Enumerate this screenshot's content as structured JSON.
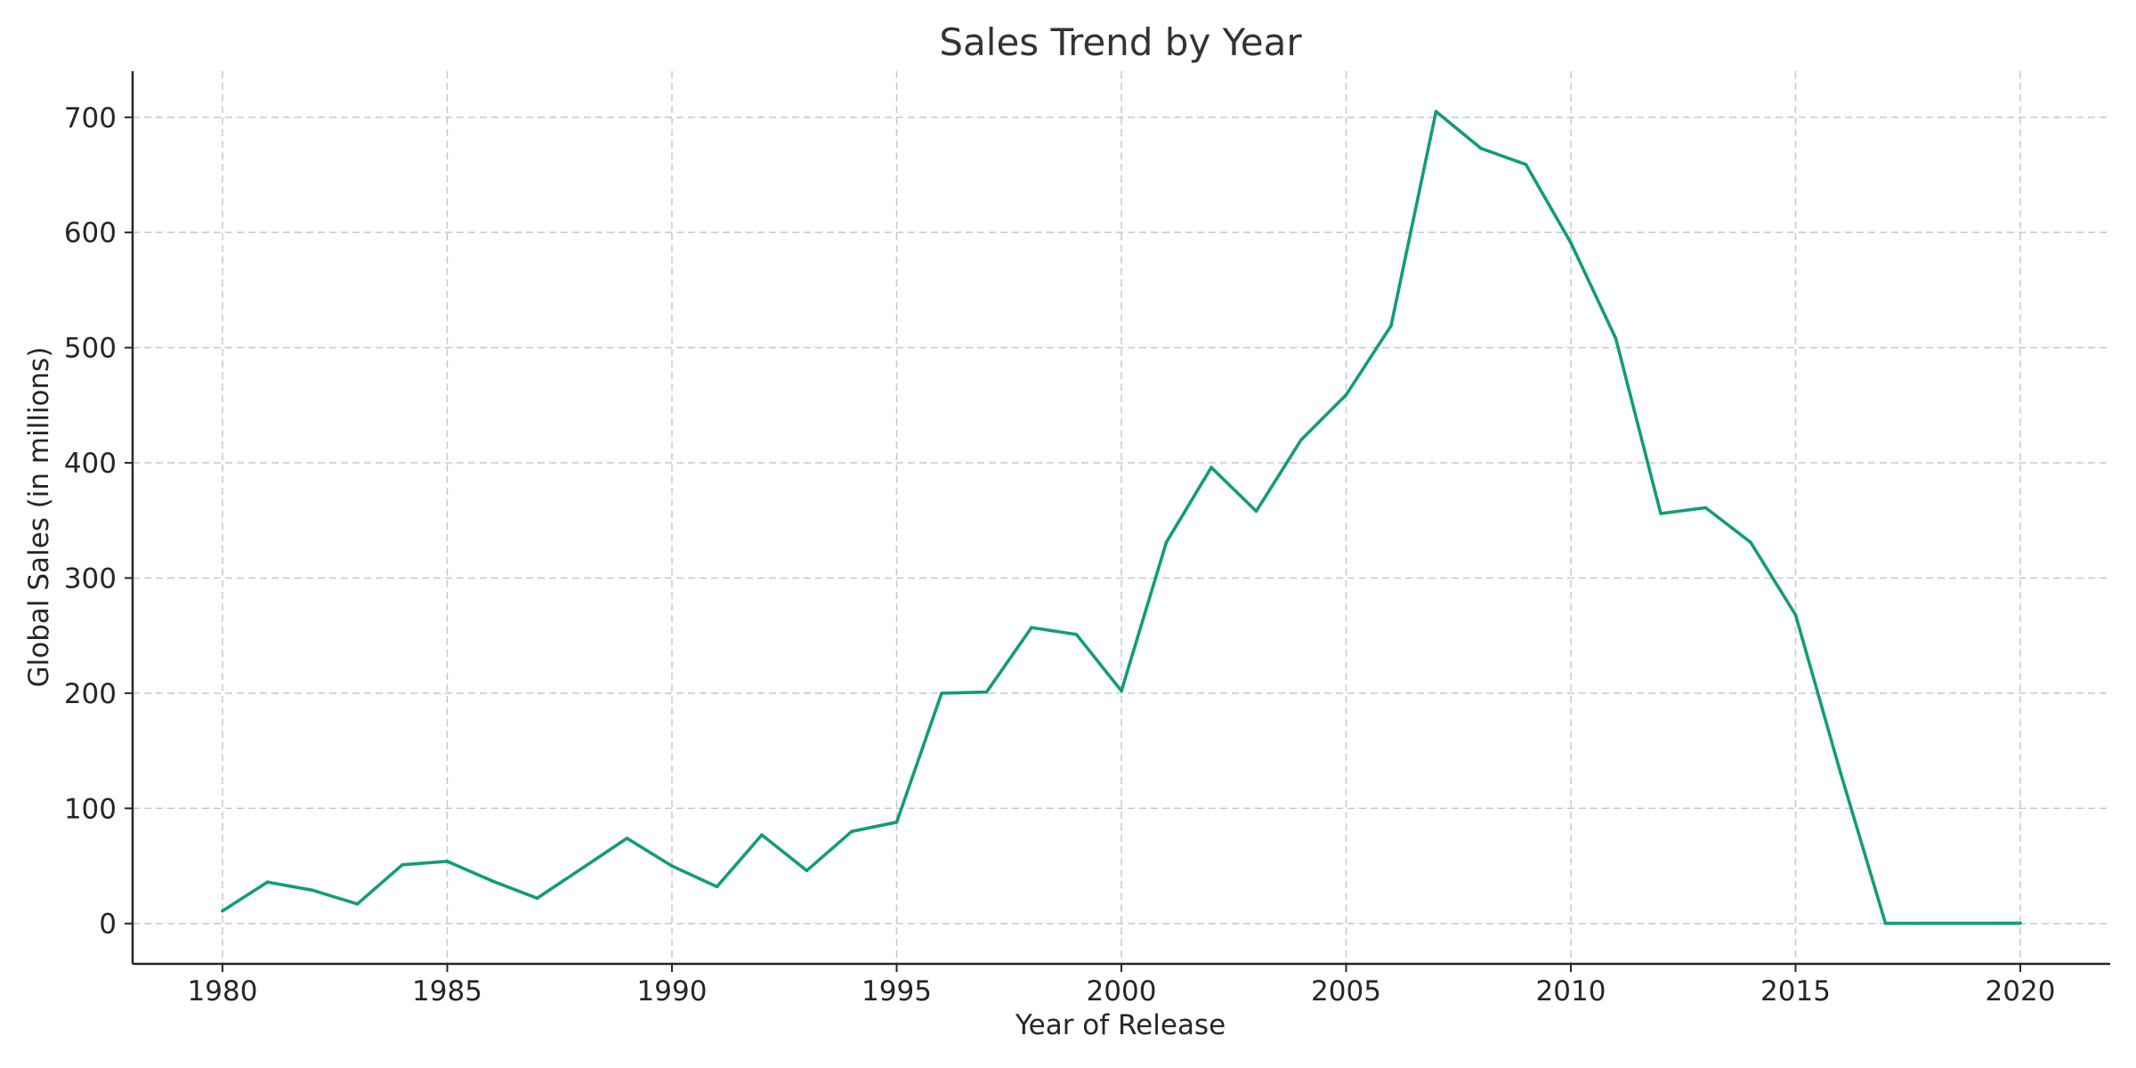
{
  "chart_data": {
    "type": "line",
    "title": "Sales Trend by Year",
    "xlabel": "Year of Release",
    "ylabel": "Global Sales (in millions)",
    "xlim": [
      1978,
      2022
    ],
    "ylim": [
      -35,
      740
    ],
    "xticks": [
      1980,
      1985,
      1990,
      1995,
      2000,
      2005,
      2010,
      2015,
      2020
    ],
    "yticks": [
      0,
      100,
      200,
      300,
      400,
      500,
      600,
      700
    ],
    "grid": true,
    "line_color": "#129c7a",
    "x": [
      1980,
      1981,
      1982,
      1983,
      1984,
      1985,
      1986,
      1987,
      1988,
      1989,
      1990,
      1991,
      1992,
      1993,
      1994,
      1995,
      1996,
      1997,
      1998,
      1999,
      2000,
      2001,
      2002,
      2003,
      2004,
      2005,
      2006,
      2007,
      2008,
      2009,
      2010,
      2011,
      2012,
      2013,
      2014,
      2015,
      2016,
      2017,
      2020
    ],
    "values": [
      11,
      36,
      29,
      17,
      51,
      54,
      37,
      22,
      48,
      74,
      50,
      32,
      77,
      46,
      80,
      88,
      200,
      201,
      257,
      251,
      202,
      331,
      396,
      358,
      420,
      459,
      519,
      705,
      673,
      659,
      591,
      508,
      356,
      361,
      331,
      268,
      131,
      0.2,
      0.3
    ]
  }
}
